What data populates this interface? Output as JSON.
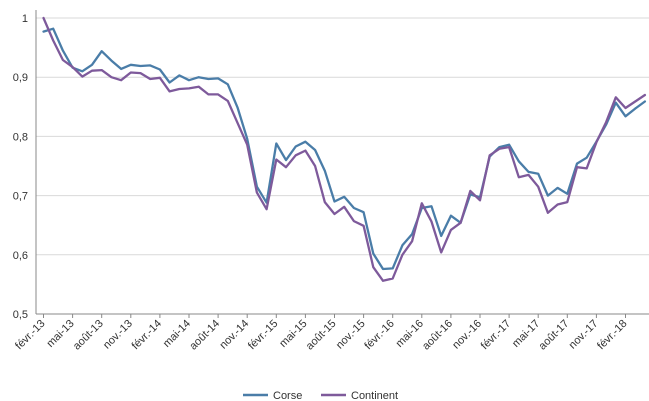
{
  "colors": {
    "corse": "#4a7da8",
    "continent": "#7e5a9b",
    "grid": "#d9d9d9",
    "axis": "#888888"
  },
  "chart_data": {
    "type": "line",
    "title": "",
    "xlabel": "",
    "ylabel": "",
    "ylim": [
      0.5,
      1.0
    ],
    "yticks": [
      "0,5",
      "0,6",
      "0,7",
      "0,8",
      "0,9",
      "1"
    ],
    "ytick_values": [
      0.5,
      0.6,
      0.7,
      0.8,
      0.9,
      1.0
    ],
    "xtick_labels": [
      "févr.-13",
      "mai-13",
      "août-13",
      "nov.-13",
      "févr.-14",
      "mai-14",
      "août-14",
      "nov.-14",
      "févr.-15",
      "mai-15",
      "août-15",
      "nov.-15",
      "févr.-16",
      "mai-16",
      "août-16",
      "nov.-16",
      "févr.-17",
      "mai-17",
      "août-17",
      "nov.-17",
      "févr.-18"
    ],
    "x": [
      "2013-02",
      "2013-03",
      "2013-04",
      "2013-05",
      "2013-06",
      "2013-07",
      "2013-08",
      "2013-09",
      "2013-10",
      "2013-11",
      "2013-12",
      "2014-01",
      "2014-02",
      "2014-03",
      "2014-04",
      "2014-05",
      "2014-06",
      "2014-07",
      "2014-08",
      "2014-09",
      "2014-10",
      "2014-11",
      "2014-12",
      "2015-01",
      "2015-02",
      "2015-03",
      "2015-04",
      "2015-05",
      "2015-06",
      "2015-07",
      "2015-08",
      "2015-09",
      "2015-10",
      "2015-11",
      "2015-12",
      "2016-01",
      "2016-02",
      "2016-03",
      "2016-04",
      "2016-05",
      "2016-06",
      "2016-07",
      "2016-08",
      "2016-09",
      "2016-10",
      "2016-11",
      "2016-12",
      "2017-01",
      "2017-02",
      "2017-03",
      "2017-04",
      "2017-05",
      "2017-06",
      "2017-07",
      "2017-08",
      "2017-09",
      "2017-10",
      "2017-11",
      "2017-12",
      "2018-01",
      "2018-02",
      "2018-03",
      "2018-04"
    ],
    "series": [
      {
        "name": "Corse",
        "color": "#4a7da8",
        "values": [
          0.977,
          0.982,
          0.945,
          0.916,
          0.91,
          0.921,
          0.944,
          0.928,
          0.914,
          0.921,
          0.919,
          0.92,
          0.913,
          0.891,
          0.903,
          0.895,
          0.9,
          0.897,
          0.898,
          0.888,
          0.849,
          0.796,
          0.715,
          0.688,
          0.788,
          0.76,
          0.783,
          0.791,
          0.777,
          0.742,
          0.69,
          0.698,
          0.679,
          0.672,
          0.602,
          0.576,
          0.577,
          0.616,
          0.635,
          0.679,
          0.682,
          0.632,
          0.666,
          0.654,
          0.702,
          0.697,
          0.766,
          0.782,
          0.786,
          0.758,
          0.74,
          0.737,
          0.7,
          0.713,
          0.703,
          0.754,
          0.764,
          0.791,
          0.82,
          0.857,
          0.834,
          0.847,
          0.859
        ]
      },
      {
        "name": "Continent",
        "color": "#7e5a9b",
        "values": [
          1.0,
          0.962,
          0.929,
          0.917,
          0.901,
          0.911,
          0.912,
          0.9,
          0.895,
          0.908,
          0.907,
          0.897,
          0.899,
          0.876,
          0.88,
          0.881,
          0.884,
          0.871,
          0.871,
          0.86,
          0.823,
          0.786,
          0.705,
          0.677,
          0.761,
          0.748,
          0.768,
          0.776,
          0.75,
          0.689,
          0.669,
          0.681,
          0.657,
          0.649,
          0.579,
          0.556,
          0.56,
          0.6,
          0.623,
          0.687,
          0.656,
          0.604,
          0.642,
          0.654,
          0.708,
          0.692,
          0.768,
          0.779,
          0.782,
          0.731,
          0.735,
          0.715,
          0.671,
          0.685,
          0.689,
          0.748,
          0.746,
          0.79,
          0.824,
          0.866,
          0.848,
          0.859,
          0.87
        ]
      }
    ],
    "grid": true,
    "legend": {
      "position": "bottom-center",
      "entries": [
        "Corse",
        "Continent"
      ]
    }
  }
}
